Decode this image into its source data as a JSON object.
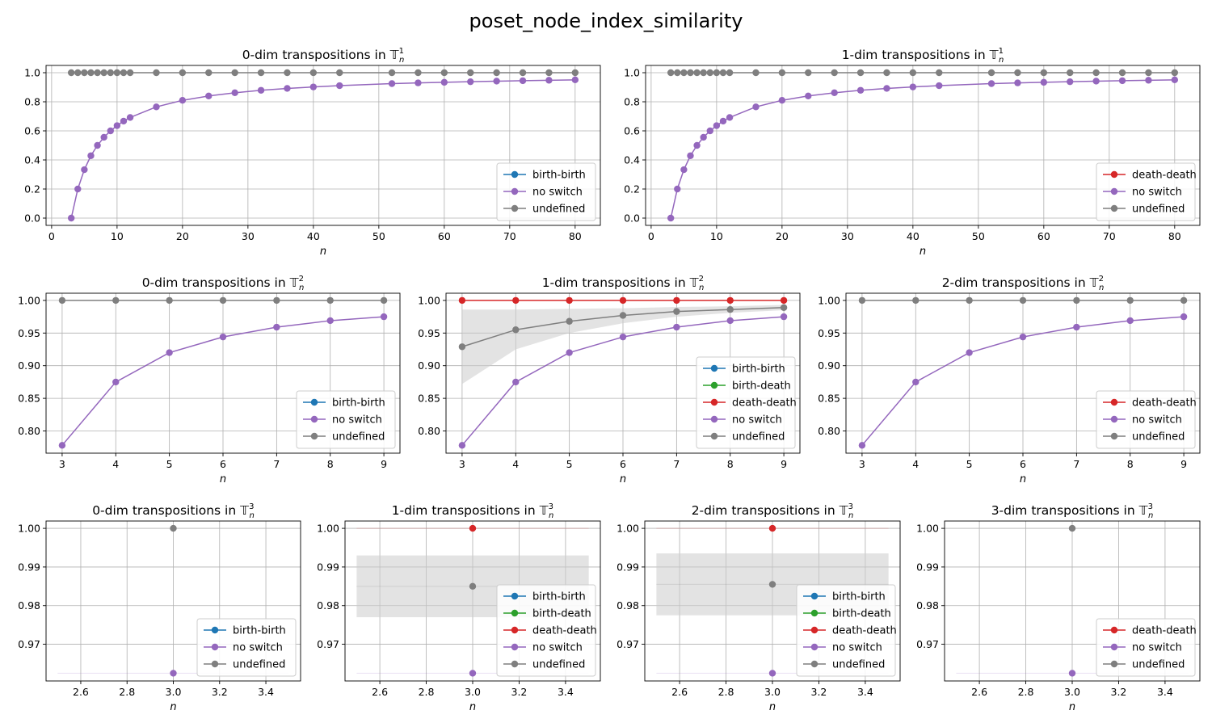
{
  "figure_title": "poset_node_index_similarity",
  "chart_data": [
    {
      "type": "line",
      "title": "0-dim transpositions in 𝕋",
      "title_sub": "n",
      "title_sup": "1",
      "xlabel": "n",
      "xlim": [
        -0.85,
        83.85
      ],
      "ylim": [
        -0.05,
        1.05
      ],
      "xticks": [
        0,
        10,
        20,
        30,
        40,
        50,
        60,
        70,
        80
      ],
      "yticks": [
        0.0,
        0.2,
        0.4,
        0.6,
        0.8,
        1.0
      ],
      "ytick_labels": [
        "0.0",
        "0.2",
        "0.4",
        "0.6",
        "0.8",
        "1.0"
      ],
      "grid": true,
      "legend_location": "lower right",
      "series": [
        {
          "name": "birth-birth",
          "color": "#1f77b4",
          "x": [],
          "y": []
        },
        {
          "name": "no switch",
          "color": "#9467bd",
          "x": [
            3,
            4,
            5,
            6,
            7,
            8,
            9,
            10,
            11,
            12,
            16,
            20,
            24,
            28,
            32,
            36,
            40,
            44,
            52,
            56,
            60,
            64,
            68,
            72,
            76,
            80
          ],
          "y": [
            0.0,
            0.2,
            0.333,
            0.429,
            0.5,
            0.556,
            0.6,
            0.636,
            0.667,
            0.692,
            0.765,
            0.81,
            0.84,
            0.862,
            0.879,
            0.892,
            0.902,
            0.911,
            0.925,
            0.93,
            0.934,
            0.938,
            0.942,
            0.945,
            0.948,
            0.951
          ]
        },
        {
          "name": "undefined",
          "color": "#7f7f7f",
          "x": [
            3,
            4,
            5,
            6,
            7,
            8,
            9,
            10,
            11,
            12,
            16,
            20,
            24,
            28,
            32,
            36,
            40,
            44,
            52,
            56,
            60,
            64,
            68,
            72,
            76,
            80
          ],
          "y": [
            1,
            1,
            1,
            1,
            1,
            1,
            1,
            1,
            1,
            1,
            1,
            1,
            1,
            1,
            1,
            1,
            1,
            1,
            1,
            1,
            1,
            1,
            1,
            1,
            1,
            1
          ]
        }
      ]
    },
    {
      "type": "line",
      "title": "1-dim transpositions in 𝕋",
      "title_sub": "n",
      "title_sup": "1",
      "xlabel": "n",
      "xlim": [
        -0.85,
        83.85
      ],
      "ylim": [
        -0.05,
        1.05
      ],
      "xticks": [
        0,
        10,
        20,
        30,
        40,
        50,
        60,
        70,
        80
      ],
      "yticks": [
        0.0,
        0.2,
        0.4,
        0.6,
        0.8,
        1.0
      ],
      "ytick_labels": [
        "0.0",
        "0.2",
        "0.4",
        "0.6",
        "0.8",
        "1.0"
      ],
      "grid": true,
      "legend_location": "lower right",
      "series": [
        {
          "name": "death-death",
          "color": "#d62728",
          "x": [],
          "y": []
        },
        {
          "name": "no switch",
          "color": "#9467bd",
          "x": [
            3,
            4,
            5,
            6,
            7,
            8,
            9,
            10,
            11,
            12,
            16,
            20,
            24,
            28,
            32,
            36,
            40,
            44,
            52,
            56,
            60,
            64,
            68,
            72,
            76,
            80
          ],
          "y": [
            0.0,
            0.2,
            0.333,
            0.429,
            0.5,
            0.556,
            0.6,
            0.636,
            0.667,
            0.692,
            0.765,
            0.81,
            0.84,
            0.862,
            0.879,
            0.892,
            0.902,
            0.911,
            0.925,
            0.93,
            0.934,
            0.938,
            0.942,
            0.945,
            0.948,
            0.951
          ]
        },
        {
          "name": "undefined",
          "color": "#7f7f7f",
          "x": [
            3,
            4,
            5,
            6,
            7,
            8,
            9,
            10,
            11,
            12,
            16,
            20,
            24,
            28,
            32,
            36,
            40,
            44,
            52,
            56,
            60,
            64,
            68,
            72,
            76,
            80
          ],
          "y": [
            1,
            1,
            1,
            1,
            1,
            1,
            1,
            1,
            1,
            1,
            1,
            1,
            1,
            1,
            1,
            1,
            1,
            1,
            1,
            1,
            1,
            1,
            1,
            1,
            1,
            1
          ]
        }
      ]
    },
    {
      "type": "line",
      "title": "0-dim transpositions in 𝕋",
      "title_sub": "n",
      "title_sup": "2",
      "xlabel": "n",
      "xlim": [
        2.7,
        9.3
      ],
      "ylim": [
        0.766,
        1.011
      ],
      "xticks": [
        3,
        4,
        5,
        6,
        7,
        8,
        9
      ],
      "yticks": [
        0.8,
        0.85,
        0.9,
        0.95,
        1.0
      ],
      "ytick_labels": [
        "0.80",
        "0.85",
        "0.90",
        "0.95",
        "1.00"
      ],
      "grid": true,
      "legend_location": "lower right",
      "series": [
        {
          "name": "birth-birth",
          "color": "#1f77b4",
          "x": [],
          "y": []
        },
        {
          "name": "no switch",
          "color": "#9467bd",
          "x": [
            3,
            4,
            5,
            6,
            7,
            8,
            9
          ],
          "y": [
            0.778,
            0.875,
            0.92,
            0.944,
            0.959,
            0.969,
            0.975
          ]
        },
        {
          "name": "undefined",
          "color": "#7f7f7f",
          "x": [
            3,
            4,
            5,
            6,
            7,
            8,
            9
          ],
          "y": [
            1,
            1,
            1,
            1,
            1,
            1,
            1
          ]
        }
      ]
    },
    {
      "type": "line",
      "title": "1-dim transpositions in 𝕋",
      "title_sub": "n",
      "title_sup": "2",
      "xlabel": "n",
      "xlim": [
        2.7,
        9.3
      ],
      "ylim": [
        0.766,
        1.011
      ],
      "xticks": [
        3,
        4,
        5,
        6,
        7,
        8,
        9
      ],
      "yticks": [
        0.8,
        0.85,
        0.9,
        0.95,
        1.0
      ],
      "ytick_labels": [
        "0.80",
        "0.85",
        "0.90",
        "0.95",
        "1.00"
      ],
      "grid": true,
      "legend_location": "lower right",
      "band": {
        "x": [
          3,
          4,
          5,
          6,
          7,
          8,
          9
        ],
        "lower": [
          0.872,
          0.925,
          0.95,
          0.965,
          0.975,
          0.981,
          0.985
        ],
        "upper": [
          0.986,
          0.986,
          0.987,
          0.988,
          0.99,
          0.991,
          0.993
        ],
        "color": "#cccccc"
      },
      "series": [
        {
          "name": "birth-birth",
          "color": "#1f77b4",
          "x": [],
          "y": []
        },
        {
          "name": "birth-death",
          "color": "#2ca02c",
          "x": [],
          "y": []
        },
        {
          "name": "death-death",
          "color": "#d62728",
          "x": [
            3,
            4,
            5,
            6,
            7,
            8,
            9
          ],
          "y": [
            1,
            1,
            1,
            1,
            1,
            1,
            1
          ]
        },
        {
          "name": "no switch",
          "color": "#9467bd",
          "x": [
            3,
            4,
            5,
            6,
            7,
            8,
            9
          ],
          "y": [
            0.778,
            0.875,
            0.92,
            0.944,
            0.959,
            0.969,
            0.975
          ]
        },
        {
          "name": "undefined",
          "color": "#7f7f7f",
          "x": [
            3,
            4,
            5,
            6,
            7,
            8,
            9
          ],
          "y": [
            0.929,
            0.955,
            0.968,
            0.977,
            0.983,
            0.986,
            0.989
          ]
        }
      ]
    },
    {
      "type": "line",
      "title": "2-dim transpositions in 𝕋",
      "title_sub": "n",
      "title_sup": "2",
      "xlabel": "n",
      "xlim": [
        2.7,
        9.3
      ],
      "ylim": [
        0.766,
        1.011
      ],
      "xticks": [
        3,
        4,
        5,
        6,
        7,
        8,
        9
      ],
      "yticks": [
        0.8,
        0.85,
        0.9,
        0.95,
        1.0
      ],
      "ytick_labels": [
        "0.80",
        "0.85",
        "0.90",
        "0.95",
        "1.00"
      ],
      "grid": true,
      "legend_location": "lower right",
      "series": [
        {
          "name": "death-death",
          "color": "#d62728",
          "x": [],
          "y": []
        },
        {
          "name": "no switch",
          "color": "#9467bd",
          "x": [
            3,
            4,
            5,
            6,
            7,
            8,
            9
          ],
          "y": [
            0.778,
            0.875,
            0.92,
            0.944,
            0.959,
            0.969,
            0.975
          ]
        },
        {
          "name": "undefined",
          "color": "#7f7f7f",
          "x": [
            3,
            4,
            5,
            6,
            7,
            8,
            9
          ],
          "y": [
            1,
            1,
            1,
            1,
            1,
            1,
            1
          ]
        }
      ]
    },
    {
      "type": "line",
      "title": "0-dim transpositions in 𝕋",
      "title_sub": "n",
      "title_sup": "3",
      "xlabel": "n",
      "xlim": [
        2.45,
        3.55
      ],
      "ylim": [
        0.9605,
        1.0019
      ],
      "xticks": [
        2.6,
        2.8,
        3.0,
        3.2,
        3.4
      ],
      "xtick_labels": [
        "2.6",
        "2.8",
        "3.0",
        "3.2",
        "3.4"
      ],
      "yticks": [
        0.97,
        0.98,
        0.99,
        1.0
      ],
      "ytick_labels": [
        "0.97",
        "0.98",
        "0.99",
        "1.00"
      ],
      "grid": true,
      "legend_location": "lower right",
      "series": [
        {
          "name": "birth-birth",
          "color": "#1f77b4",
          "x": [],
          "y": []
        },
        {
          "name": "no switch",
          "color": "#9467bd",
          "x": [
            3
          ],
          "y": [
            0.9625
          ]
        },
        {
          "name": "undefined",
          "color": "#7f7f7f",
          "x": [
            3
          ],
          "y": [
            1.0
          ]
        }
      ]
    },
    {
      "type": "line",
      "title": "1-dim transpositions in 𝕋",
      "title_sub": "n",
      "title_sup": "3",
      "xlabel": "n",
      "xlim": [
        2.45,
        3.55
      ],
      "ylim": [
        0.9605,
        1.0019
      ],
      "xticks": [
        2.6,
        2.8,
        3.0,
        3.2,
        3.4
      ],
      "xtick_labels": [
        "2.6",
        "2.8",
        "3.0",
        "3.2",
        "3.4"
      ],
      "yticks": [
        0.97,
        0.98,
        0.99,
        1.0
      ],
      "ytick_labels": [
        "0.97",
        "0.98",
        "0.99",
        "1.00"
      ],
      "grid": true,
      "legend_location": "lower right",
      "band": {
        "x": [
          2.5,
          3.5
        ],
        "lower": [
          0.977,
          0.977
        ],
        "upper": [
          0.993,
          0.993
        ],
        "color": "#cccccc"
      },
      "series": [
        {
          "name": "birth-birth",
          "color": "#1f77b4",
          "x": [],
          "y": []
        },
        {
          "name": "birth-death",
          "color": "#2ca02c",
          "x": [],
          "y": []
        },
        {
          "name": "death-death",
          "color": "#d62728",
          "x": [
            3
          ],
          "y": [
            1.0
          ]
        },
        {
          "name": "no switch",
          "color": "#9467bd",
          "x": [
            3
          ],
          "y": [
            0.9625
          ]
        },
        {
          "name": "undefined",
          "color": "#7f7f7f",
          "x": [
            3
          ],
          "y": [
            0.985
          ]
        }
      ]
    },
    {
      "type": "line",
      "title": "2-dim transpositions in 𝕋",
      "title_sub": "n",
      "title_sup": "3",
      "xlabel": "n",
      "xlim": [
        2.45,
        3.55
      ],
      "ylim": [
        0.9605,
        1.0019
      ],
      "xticks": [
        2.6,
        2.8,
        3.0,
        3.2,
        3.4
      ],
      "xtick_labels": [
        "2.6",
        "2.8",
        "3.0",
        "3.2",
        "3.4"
      ],
      "yticks": [
        0.97,
        0.98,
        0.99,
        1.0
      ],
      "ytick_labels": [
        "0.97",
        "0.98",
        "0.99",
        "1.00"
      ],
      "grid": true,
      "legend_location": "lower right",
      "band": {
        "x": [
          2.5,
          3.5
        ],
        "lower": [
          0.9775,
          0.9775
        ],
        "upper": [
          0.9935,
          0.9935
        ],
        "color": "#cccccc"
      },
      "series": [
        {
          "name": "birth-birth",
          "color": "#1f77b4",
          "x": [],
          "y": []
        },
        {
          "name": "birth-death",
          "color": "#2ca02c",
          "x": [],
          "y": []
        },
        {
          "name": "death-death",
          "color": "#d62728",
          "x": [
            3
          ],
          "y": [
            1.0
          ]
        },
        {
          "name": "no switch",
          "color": "#9467bd",
          "x": [
            3
          ],
          "y": [
            0.9625
          ]
        },
        {
          "name": "undefined",
          "color": "#7f7f7f",
          "x": [
            3
          ],
          "y": [
            0.9855
          ]
        }
      ]
    },
    {
      "type": "line",
      "title": "3-dim transpositions in 𝕋",
      "title_sub": "n",
      "title_sup": "3",
      "xlabel": "n",
      "xlim": [
        2.45,
        3.55
      ],
      "ylim": [
        0.9605,
        1.0019
      ],
      "xticks": [
        2.6,
        2.8,
        3.0,
        3.2,
        3.4
      ],
      "xtick_labels": [
        "2.6",
        "2.8",
        "3.0",
        "3.2",
        "3.4"
      ],
      "yticks": [
        0.97,
        0.98,
        0.99,
        1.0
      ],
      "ytick_labels": [
        "0.97",
        "0.98",
        "0.99",
        "1.00"
      ],
      "grid": true,
      "legend_location": "lower right",
      "series": [
        {
          "name": "death-death",
          "color": "#d62728",
          "x": [],
          "y": []
        },
        {
          "name": "no switch",
          "color": "#9467bd",
          "x": [
            3
          ],
          "y": [
            0.9625
          ]
        },
        {
          "name": "undefined",
          "color": "#7f7f7f",
          "x": [
            3
          ],
          "y": [
            1.0
          ]
        }
      ]
    }
  ]
}
